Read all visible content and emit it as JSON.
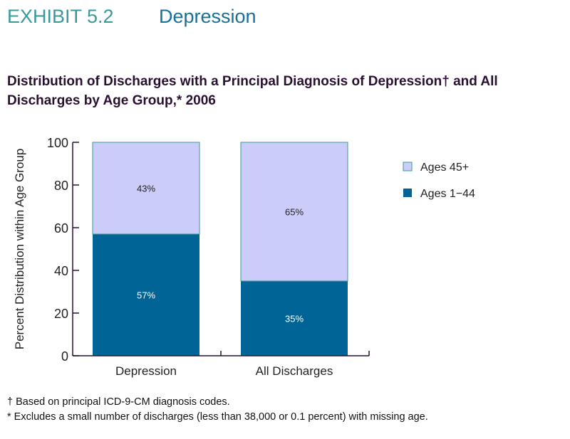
{
  "header": {
    "exhibit": "EXHIBIT 5.2",
    "topic": "Depression"
  },
  "footnotes": [
    "† Based on principal ICD-9-CM diagnosis codes.",
    "* Excludes a small number of discharges (less than 38,000 or 0.1 percent) with missing age."
  ],
  "chart_data": {
    "type": "bar",
    "stacked": true,
    "title": "Distribution of Discharges with a Principal Diagnosis of Depression† and All Discharges by Age Group,* 2006",
    "xlabel": "",
    "ylabel": "Percent Distribution within Age Group",
    "ylim": [
      0,
      100
    ],
    "yticks": [
      0,
      20,
      40,
      60,
      80,
      100
    ],
    "categories": [
      "Depression",
      "All Discharges"
    ],
    "series": [
      {
        "name": "Ages 1−44",
        "values": [
          57,
          35
        ],
        "labels": [
          "57%",
          "35%"
        ],
        "color": "#006496"
      },
      {
        "name": "Ages 45+",
        "values": [
          43,
          65
        ],
        "labels": [
          "43%",
          "65%"
        ],
        "color": "#ccccf8"
      }
    ],
    "legend_position": "right",
    "grid": false
  }
}
